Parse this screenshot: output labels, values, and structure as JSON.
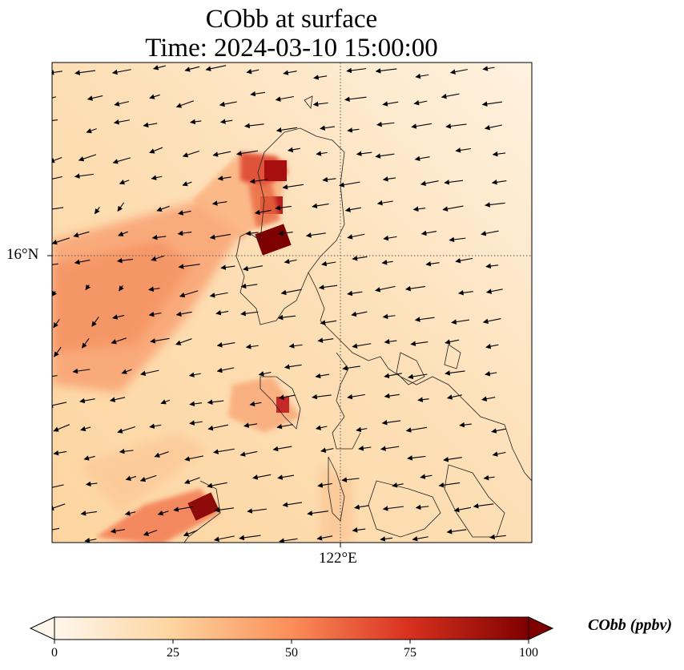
{
  "title": {
    "line1": "CObb at surface",
    "line2": "Time: 2024-03-10 15:00:00"
  },
  "map": {
    "lat_label": "16°N",
    "lon_label": "122°E",
    "gridlines": "dotted",
    "coastlines": true,
    "wind_vectors": true
  },
  "colorbar": {
    "label": "CObb (ppbv)",
    "ticks": [
      "0",
      "25",
      "50",
      "75",
      "100"
    ],
    "extend": "both",
    "colormap": "OrRd",
    "colors": [
      "#fff7ec",
      "#fdd49e",
      "#fc8d59",
      "#d7301f",
      "#7f0000"
    ]
  }
}
